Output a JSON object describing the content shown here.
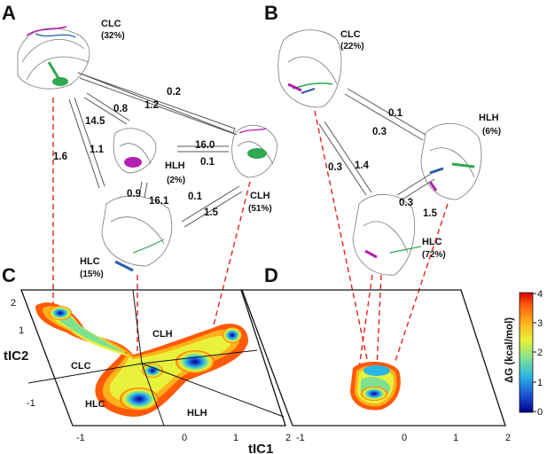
{
  "panels": {
    "a": "A",
    "b": "B",
    "c": "C",
    "d": "D"
  },
  "panel_a": {
    "states": [
      {
        "key": "clc",
        "label": "CLC",
        "pct": "(32%)"
      },
      {
        "key": "hlh",
        "label": "HLH",
        "pct": "(2%)"
      },
      {
        "key": "hlc",
        "label": "HLC",
        "pct": "(15%)"
      },
      {
        "key": "clh",
        "label": "CLH",
        "pct": "(51%)"
      }
    ],
    "rates": {
      "clc_clh_upper": "0.2",
      "clc_hlh_a": "0.8",
      "clc_hlh_b": "1.2",
      "clc_hlh_c": "14.5",
      "clc_hlc_a": "1.1",
      "clc_hlc_b": "1.6",
      "hlh_clh_a": "16.0",
      "hlh_clh_b": "0.1",
      "hlh_hlc_a": "0.9",
      "hlh_hlc_b": "16.1",
      "hlc_clh_a": "0.1",
      "hlc_clh_b": "1.5"
    }
  },
  "panel_b": {
    "states": [
      {
        "key": "clc",
        "label": "CLC",
        "pct": "(22%)"
      },
      {
        "key": "hlh",
        "label": "HLH",
        "pct": "(6%)"
      },
      {
        "key": "hlc",
        "label": "HLC",
        "pct": "(72%)"
      }
    ],
    "rates": {
      "clc_hlh_a": "0.1",
      "clc_hlh_b": "0.3",
      "clc_hlc_a": "0.3",
      "clc_hlc_b": "1.4",
      "hlh_hlc_a": "0.3",
      "hlh_hlc_b": "1.5"
    }
  },
  "landscape": {
    "x_label": "tIC1",
    "y_label": "tIC2",
    "x_ticks": [
      "-1",
      "0",
      "1",
      "2"
    ],
    "y_ticks": [
      "2",
      "1",
      "-1"
    ],
    "regions_c": [
      "CLH",
      "CLC",
      "HLC",
      "HLH"
    ]
  },
  "colorbar": {
    "title": "ΔG (kcal/mol)",
    "ticks": [
      "4",
      "3",
      "2",
      "1",
      "0"
    ],
    "colors": [
      "#00008b",
      "#1e56d8",
      "#29b6e6",
      "#7fe08f",
      "#e8f23a",
      "#ffb21a",
      "#ff5a0a",
      "#d40000"
    ]
  },
  "colors": {
    "dashed_link": "#e0241b",
    "helix_green": "#2fa84f",
    "helix_magenta": "#b41fb0",
    "helix_blue": "#2a5caa"
  }
}
